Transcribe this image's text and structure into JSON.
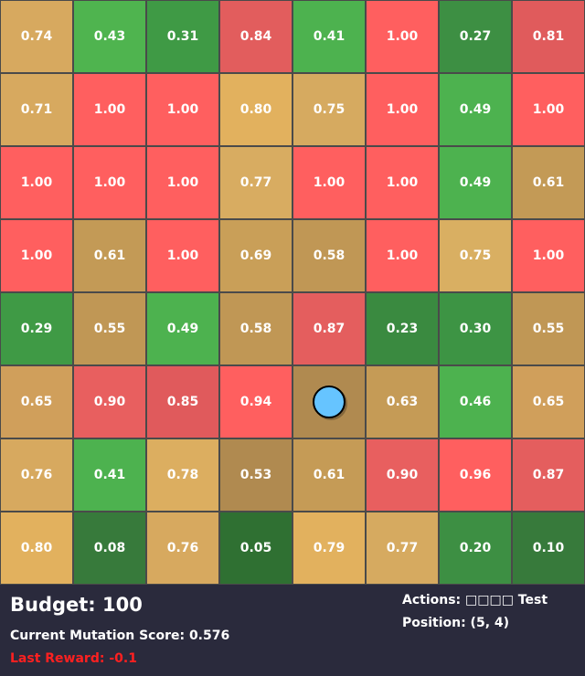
{
  "grid": {
    "rows": 8,
    "cols": 8,
    "values": [
      [
        "0.74",
        "0.43",
        "0.31",
        "0.84",
        "0.41",
        "1.00",
        "0.27",
        "0.81"
      ],
      [
        "0.71",
        "1.00",
        "1.00",
        "0.80",
        "0.75",
        "1.00",
        "0.49",
        "1.00"
      ],
      [
        "1.00",
        "1.00",
        "1.00",
        "0.77",
        "1.00",
        "1.00",
        "0.49",
        "0.61"
      ],
      [
        "1.00",
        "0.61",
        "1.00",
        "0.69",
        "0.58",
        "1.00",
        "0.75",
        "1.00"
      ],
      [
        "0.29",
        "0.55",
        "0.49",
        "0.58",
        "0.87",
        "0.23",
        "0.30",
        "0.55"
      ],
      [
        "0.65",
        "0.90",
        "0.85",
        "0.94",
        "",
        "0.63",
        "0.46",
        "0.65"
      ],
      [
        "0.76",
        "0.41",
        "0.78",
        "0.53",
        "0.61",
        "0.90",
        "0.96",
        "0.87"
      ],
      [
        "0.80",
        "0.08",
        "0.76",
        "0.05",
        "0.79",
        "0.77",
        "0.20",
        "0.10"
      ]
    ],
    "colors": [
      [
        "#d7a95f",
        "#4fb44f",
        "#3f9a45",
        "#e25d5d",
        "#4db24f",
        "#ff5f5f",
        "#3d8f43",
        "#e05b5c"
      ],
      [
        "#d7a95f",
        "#ff5f5f",
        "#ff5f5f",
        "#e2b15e",
        "#d6aa60",
        "#ff5f5f",
        "#4db24f",
        "#ff5f5f"
      ],
      [
        "#ff5f5f",
        "#ff5f5f",
        "#ff5f5f",
        "#d8ac61",
        "#ff5f5f",
        "#ff5f5f",
        "#4db24f",
        "#c39a56"
      ],
      [
        "#ff5f5f",
        "#c39a56",
        "#ff5f5f",
        "#c99f58",
        "#c09755",
        "#ff5f5f",
        "#d9af62",
        "#ff5f5f"
      ],
      [
        "#3f9a45",
        "#c09755",
        "#4db24f",
        "#c09755",
        "#e45e5e",
        "#3a8a40",
        "#3d9444",
        "#c09755"
      ],
      [
        "#d09f5b",
        "#e85f5f",
        "#e05a5c",
        "#ff5f5f",
        "#b08a50",
        "#c59b56",
        "#4db24f",
        "#d09f5b"
      ],
      [
        "#d7a95f",
        "#4db24f",
        "#dcae60",
        "#b08a50",
        "#c59b56",
        "#e85f5f",
        "#ff5f5f",
        "#e45e5e"
      ],
      [
        "#e2b15e",
        "#377a3b",
        "#d7a95f",
        "#2f7032",
        "#e2b15e",
        "#d6aa60",
        "#3d8f43",
        "#377a3b"
      ]
    ]
  },
  "agent": {
    "row": 5,
    "col": 4,
    "color": "#66c4ff"
  },
  "hud": {
    "budget": "Budget: 100",
    "mutation_score": "Current Mutation Score: 0.576",
    "last_reward": "Last Reward: -0.1",
    "actions": "Actions: □□□□ Test",
    "position": "Position: (5, 4)"
  }
}
